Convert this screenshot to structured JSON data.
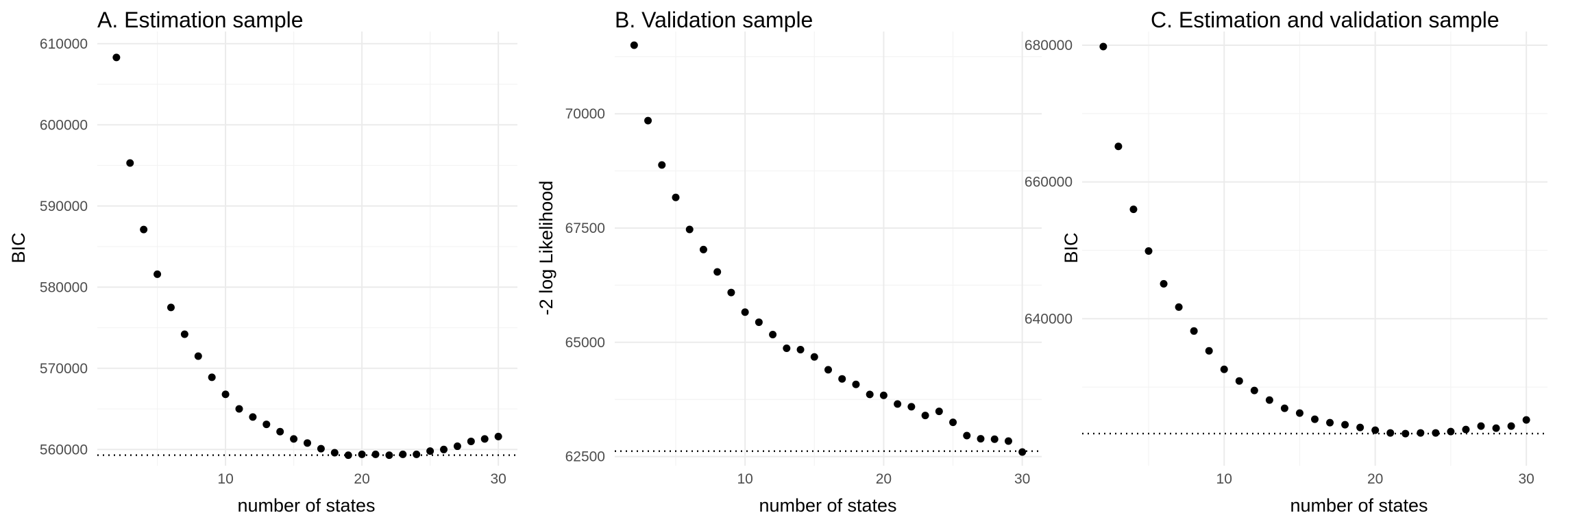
{
  "chart_data": [
    {
      "type": "scatter",
      "title": "A. Estimation sample",
      "xlabel": "number of states",
      "ylabel": "BIC",
      "xlim": [
        0.6,
        31.4
      ],
      "ylim": [
        558000,
        611500
      ],
      "x_ticks": [
        10,
        20,
        30
      ],
      "x_tick_labels": [
        "10",
        "20",
        "30"
      ],
      "y_ticks": [
        560000,
        570000,
        580000,
        590000,
        600000,
        610000
      ],
      "y_tick_labels": [
        "560000",
        "570000",
        "580000",
        "590000",
        "600000",
        "610000"
      ],
      "grid": true,
      "reference_line": {
        "y": 559300,
        "style": "dotted"
      },
      "series": [
        {
          "x": [
            2,
            3,
            4,
            5,
            6,
            7,
            8,
            9,
            10,
            11,
            12,
            13,
            14,
            15,
            16,
            17,
            18,
            19,
            20,
            21,
            22,
            23,
            24,
            25,
            26,
            27,
            28,
            29,
            30
          ],
          "values": [
            608300,
            595300,
            587100,
            581600,
            577500,
            574200,
            571500,
            568900,
            566800,
            565000,
            564000,
            563100,
            562200,
            561300,
            560800,
            560100,
            559600,
            559300,
            559400,
            559400,
            559300,
            559400,
            559400,
            559800,
            560000,
            560400,
            561000,
            561300,
            561600
          ]
        }
      ]
    },
    {
      "type": "scatter",
      "title": "B. Validation sample",
      "xlabel": "number of states",
      "ylabel": "-2 log Likelihood",
      "xlim": [
        0.6,
        31.4
      ],
      "ylim": [
        62300,
        71800
      ],
      "x_ticks": [
        10,
        20,
        30
      ],
      "x_tick_labels": [
        "10",
        "20",
        "30"
      ],
      "y_ticks": [
        62500,
        65000,
        67500,
        70000
      ],
      "y_tick_labels": [
        "62500",
        "65000",
        "67500",
        "70000"
      ],
      "grid": true,
      "reference_line": {
        "y": 62620,
        "style": "dotted"
      },
      "series": [
        {
          "x": [
            2,
            3,
            4,
            5,
            6,
            7,
            8,
            9,
            10,
            11,
            12,
            13,
            14,
            15,
            16,
            17,
            18,
            19,
            20,
            21,
            22,
            23,
            24,
            25,
            26,
            27,
            28,
            29,
            30
          ],
          "values": [
            71500,
            69850,
            68880,
            68170,
            67470,
            67030,
            66540,
            66090,
            65660,
            65440,
            65170,
            64870,
            64840,
            64680,
            64400,
            64200,
            64080,
            63860,
            63840,
            63650,
            63590,
            63400,
            63490,
            63250,
            62960,
            62890,
            62880,
            62840,
            62600
          ]
        }
      ]
    },
    {
      "type": "scatter",
      "title": "C. Estimation and validation sample",
      "xlabel": "number of states",
      "ylabel": "BIC",
      "xlim": [
        0.6,
        31.4
      ],
      "ylim": [
        618500,
        682000
      ],
      "x_ticks": [
        10,
        20,
        30
      ],
      "x_tick_labels": [
        "10",
        "20",
        "30"
      ],
      "y_ticks": [
        640000,
        660000,
        680000
      ],
      "y_tick_labels": [
        "640000",
        "660000",
        "680000"
      ],
      "grid": true,
      "reference_line": {
        "y": 623200,
        "style": "dotted"
      },
      "series": [
        {
          "x": [
            2,
            3,
            4,
            5,
            6,
            7,
            8,
            9,
            10,
            11,
            12,
            13,
            14,
            15,
            16,
            17,
            18,
            19,
            20,
            21,
            22,
            23,
            24,
            25,
            26,
            27,
            28,
            29,
            30
          ],
          "values": [
            679800,
            665200,
            656000,
            649900,
            645100,
            641700,
            638200,
            635300,
            632600,
            630900,
            629500,
            628100,
            626900,
            626200,
            625300,
            624800,
            624500,
            624100,
            623700,
            623300,
            623200,
            623300,
            623300,
            623500,
            623800,
            624300,
            624000,
            624300,
            625200
          ]
        }
      ]
    }
  ]
}
